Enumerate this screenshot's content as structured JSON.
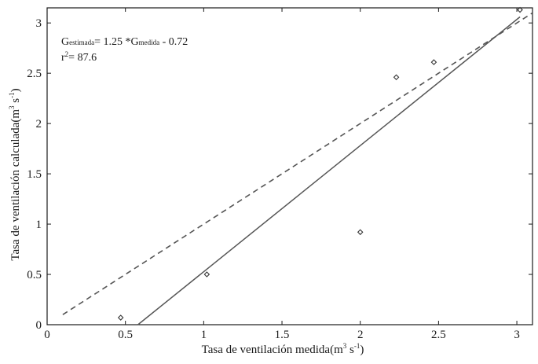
{
  "chart_data": {
    "type": "scatter",
    "title": "",
    "xlabel": "Tasa de ventilación medida",
    "xlabel_unit": "(m",
    "xlabel_exp1": "3",
    "xlabel_mid": " s",
    "xlabel_exp2": "-1",
    "xlabel_close": ")",
    "ylabel": "Tasa de ventilación calculada",
    "ylabel_unit": "(m",
    "ylabel_exp1": "3",
    "ylabel_mid": " s",
    "ylabel_exp2": "-1",
    "ylabel_close": ")",
    "xlim": [
      0,
      3.1
    ],
    "ylim": [
      0,
      3.15
    ],
    "xticks": [
      {
        "value": 0,
        "label": "0"
      },
      {
        "value": 0.5,
        "label": "0.5"
      },
      {
        "value": 1,
        "label": "1"
      },
      {
        "value": 1.5,
        "label": "1.5"
      },
      {
        "value": 2,
        "label": "2"
      },
      {
        "value": 2.5,
        "label": "2.5"
      },
      {
        "value": 3,
        "label": "3"
      }
    ],
    "yticks": [
      {
        "value": 0,
        "label": "0"
      },
      {
        "value": 0.5,
        "label": "0.5"
      },
      {
        "value": 1,
        "label": "1"
      },
      {
        "value": 1.5,
        "label": "1.5"
      },
      {
        "value": 2,
        "label": "2"
      },
      {
        "value": 2.5,
        "label": "2.5"
      },
      {
        "value": 3,
        "label": "3"
      }
    ],
    "grid": false,
    "points": [
      {
        "x": 0.47,
        "y": 0.07
      },
      {
        "x": 1.02,
        "y": 0.5
      },
      {
        "x": 2.0,
        "y": 0.92
      },
      {
        "x": 2.23,
        "y": 2.46
      },
      {
        "x": 2.47,
        "y": 2.61
      },
      {
        "x": 3.02,
        "y": 3.13
      }
    ],
    "regression_line": {
      "style": "solid",
      "color": "#555555",
      "x": [
        0.58,
        3.02
      ],
      "y": [
        0.0,
        3.06
      ]
    },
    "reference_line": {
      "style": "dashed",
      "color": "#555555",
      "x": [
        0.1,
        3.1
      ],
      "y": [
        0.1,
        3.1
      ]
    },
    "point_color": "#333333",
    "annotation": {
      "eq_g1": "G",
      "eq_sub1": "estimada",
      "eq_mid": "= 1.25 *G",
      "eq_sub2": "medida",
      "eq_end": " - 0.72",
      "r2_r": "r",
      "r2_exp": "2",
      "r2_rest": "= 87.6"
    }
  }
}
